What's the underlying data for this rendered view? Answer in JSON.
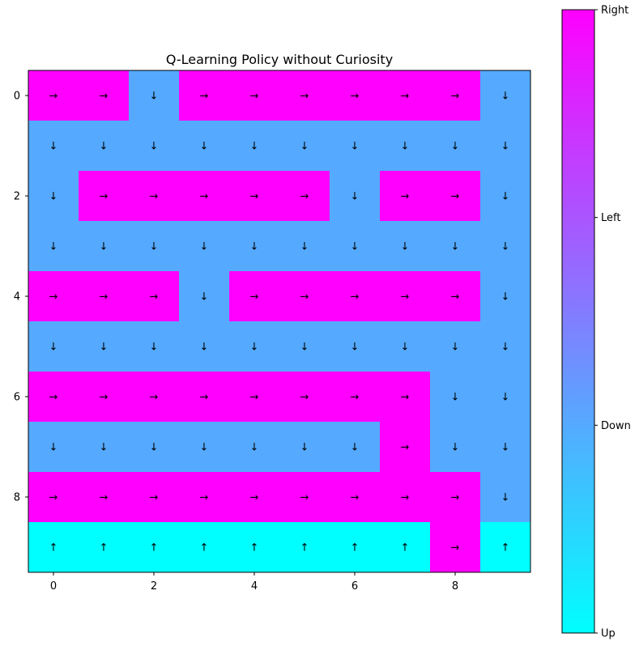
{
  "chart_data": {
    "type": "heatmap",
    "title": "Q-Learning Policy without Curiosity",
    "x_ticks": [
      "0",
      "2",
      "4",
      "6",
      "8"
    ],
    "y_ticks": [
      "0",
      "2",
      "4",
      "6",
      "8"
    ],
    "actions": [
      "Up",
      "Down",
      "Left",
      "Right"
    ],
    "action_values": [
      0,
      1,
      2,
      3
    ],
    "action_arrows": [
      "↑",
      "↓",
      "←",
      "→"
    ],
    "colorbar_labels": [
      "Up",
      "Down",
      "Left",
      "Right"
    ],
    "colormap": "cool",
    "colormap_endpoints": [
      "#00ffff",
      "#ff00ff"
    ],
    "grid": false,
    "policy": [
      [
        3,
        3,
        1,
        3,
        3,
        3,
        3,
        3,
        3,
        1
      ],
      [
        1,
        1,
        1,
        1,
        1,
        1,
        1,
        1,
        1,
        1
      ],
      [
        1,
        3,
        3,
        3,
        3,
        3,
        1,
        3,
        3,
        1
      ],
      [
        1,
        1,
        1,
        1,
        1,
        1,
        1,
        1,
        1,
        1
      ],
      [
        3,
        3,
        3,
        1,
        3,
        3,
        3,
        3,
        3,
        1
      ],
      [
        1,
        1,
        1,
        1,
        1,
        1,
        1,
        1,
        1,
        1
      ],
      [
        3,
        3,
        3,
        3,
        3,
        3,
        3,
        3,
        1,
        1
      ],
      [
        1,
        1,
        1,
        1,
        1,
        1,
        1,
        3,
        1,
        1
      ],
      [
        3,
        3,
        3,
        3,
        3,
        3,
        3,
        3,
        3,
        1
      ],
      [
        0,
        0,
        0,
        0,
        0,
        0,
        0,
        0,
        3,
        0
      ]
    ]
  }
}
